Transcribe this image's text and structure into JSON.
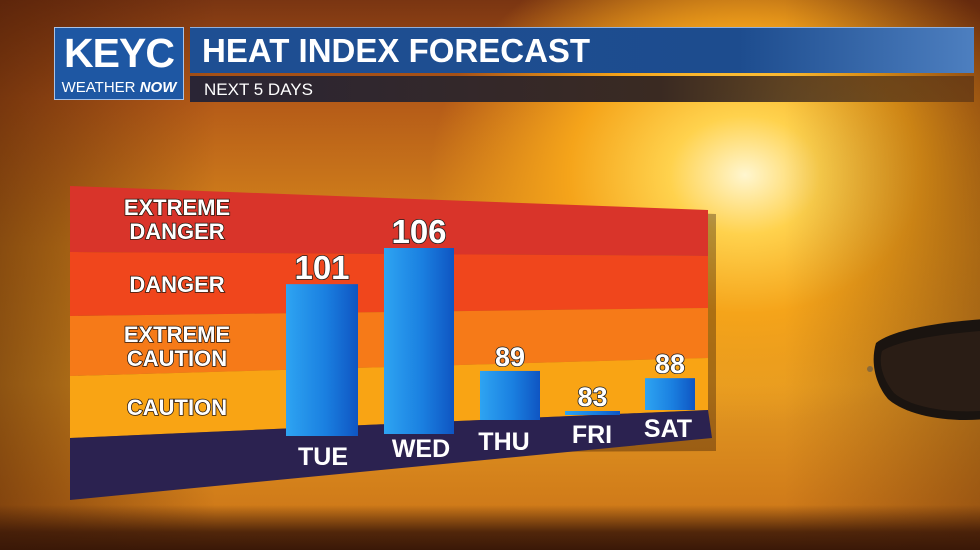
{
  "header": {
    "logo_main": "KEYC",
    "logo_sub_a": "WEATHER",
    "logo_sub_b": "NOW",
    "title": "HEAT INDEX FORECAST",
    "subtitle": "NEXT 5 DAYS"
  },
  "colors": {
    "extreme_danger": "#d9342a",
    "danger": "#f0461c",
    "extreme_caution": "#f67a18",
    "caution": "#f9a414",
    "bar": "#1a7fe0",
    "base": "#2b2250"
  },
  "chart_data": {
    "type": "bar",
    "categories": [
      "TUE",
      "WED",
      "THU",
      "FRI",
      "SAT"
    ],
    "values": [
      101,
      106,
      89,
      83,
      88
    ],
    "value_labels": [
      "101",
      "106",
      "89",
      "83",
      "88"
    ],
    "bands": [
      {
        "label": [
          "EXTREME",
          "DANGER"
        ],
        "min": 125
      },
      {
        "label": [
          "DANGER"
        ],
        "min": 103
      },
      {
        "label": [
          "EXTREME",
          "CAUTION"
        ],
        "min": 90
      },
      {
        "label": [
          "CAUTION"
        ],
        "min": 80
      }
    ],
    "title": "HEAT INDEX FORECAST",
    "subtitle": "NEXT 5 DAYS",
    "xlabel": "",
    "ylabel": "",
    "grid": false,
    "legend": "none"
  }
}
